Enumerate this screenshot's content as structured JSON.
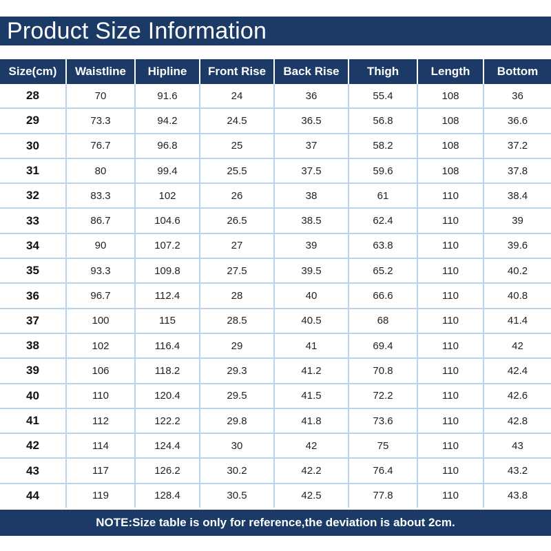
{
  "title": "Product Size Information",
  "table": {
    "headers": [
      "Size(cm)",
      "Waistline",
      "Hipline",
      "Front Rise",
      "Back Rise",
      "Thigh",
      "Length",
      "Bottom"
    ],
    "rows": [
      [
        "28",
        "70",
        "91.6",
        "24",
        "36",
        "55.4",
        "108",
        "36"
      ],
      [
        "29",
        "73.3",
        "94.2",
        "24.5",
        "36.5",
        "56.8",
        "108",
        "36.6"
      ],
      [
        "30",
        "76.7",
        "96.8",
        "25",
        "37",
        "58.2",
        "108",
        "37.2"
      ],
      [
        "31",
        "80",
        "99.4",
        "25.5",
        "37.5",
        "59.6",
        "108",
        "37.8"
      ],
      [
        "32",
        "83.3",
        "102",
        "26",
        "38",
        "61",
        "110",
        "38.4"
      ],
      [
        "33",
        "86.7",
        "104.6",
        "26.5",
        "38.5",
        "62.4",
        "110",
        "39"
      ],
      [
        "34",
        "90",
        "107.2",
        "27",
        "39",
        "63.8",
        "110",
        "39.6"
      ],
      [
        "35",
        "93.3",
        "109.8",
        "27.5",
        "39.5",
        "65.2",
        "110",
        "40.2"
      ],
      [
        "36",
        "96.7",
        "112.4",
        "28",
        "40",
        "66.6",
        "110",
        "40.8"
      ],
      [
        "37",
        "100",
        "115",
        "28.5",
        "40.5",
        "68",
        "110",
        "41.4"
      ],
      [
        "38",
        "102",
        "116.4",
        "29",
        "41",
        "69.4",
        "110",
        "42"
      ],
      [
        "39",
        "106",
        "118.2",
        "29.3",
        "41.2",
        "70.8",
        "110",
        "42.4"
      ],
      [
        "40",
        "110",
        "120.4",
        "29.5",
        "41.5",
        "72.2",
        "110",
        "42.6"
      ],
      [
        "41",
        "112",
        "122.2",
        "29.8",
        "41.8",
        "73.6",
        "110",
        "42.8"
      ],
      [
        "42",
        "114",
        "124.4",
        "30",
        "42",
        "75",
        "110",
        "43"
      ],
      [
        "43",
        "117",
        "126.2",
        "30.2",
        "42.2",
        "76.4",
        "110",
        "43.2"
      ],
      [
        "44",
        "119",
        "128.4",
        "30.5",
        "42.5",
        "77.8",
        "110",
        "43.8"
      ]
    ]
  },
  "note": "NOTE:Size table is only for reference,the deviation is about 2cm.",
  "colors": {
    "header_bg": "#1b3a66",
    "grid_line": "#b9d3ea",
    "header_text": "#ffffff"
  }
}
